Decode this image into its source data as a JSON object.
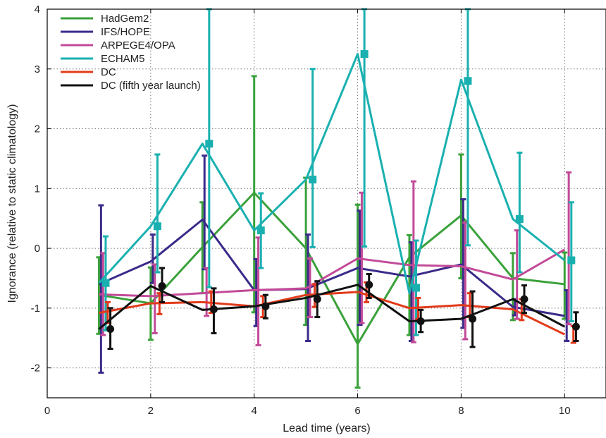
{
  "chart_data": {
    "type": "line",
    "xlabel": "Lead time (years)",
    "ylabel": "Ignorance (relative to static climatology)",
    "xlim": [
      0,
      10.8
    ],
    "ylim": [
      -2.5,
      4
    ],
    "xticks": [
      "0",
      "2",
      "4",
      "6",
      "8",
      "10"
    ],
    "yticks": [
      "-2",
      "-1",
      "0",
      "1",
      "2",
      "3",
      "4"
    ],
    "grid": true,
    "legend_position": "top-left",
    "x": [
      1,
      2,
      3,
      4,
      5,
      6,
      7,
      8,
      9,
      10
    ],
    "series": [
      {
        "name": "HadGem2",
        "color": "#3aa13a",
        "marker": "none",
        "offset": 0,
        "values": [
          -0.78,
          -0.92,
          0.02,
          0.93,
          0.0,
          -1.6,
          -0.15,
          0.55,
          -0.5,
          -0.6
        ],
        "err_low": [
          -1.43,
          -1.53,
          -0.75,
          -1.07,
          -1.28,
          -2.33,
          -1.45,
          -0.5,
          -1.2,
          -1.18
        ],
        "err_high": [
          -0.15,
          -0.32,
          0.77,
          2.88,
          1.18,
          0.73,
          0.22,
          1.57,
          -0.08,
          -0.07
        ]
      },
      {
        "name": "IFS/HOPE",
        "color": "#3b2a8a",
        "marker": "none",
        "offset": 0.04,
        "values": [
          -0.6,
          -0.22,
          0.48,
          -0.7,
          -0.68,
          -0.33,
          -0.47,
          -0.27,
          -0.98,
          -1.13
        ],
        "err_low": [
          -2.08,
          -0.58,
          -0.35,
          -1.3,
          -1.55,
          -1.28,
          -1.55,
          -1.33,
          -1.12,
          -1.55
        ],
        "err_high": [
          0.72,
          0.23,
          1.55,
          -0.18,
          0.23,
          0.63,
          0.1,
          0.82,
          -0.85,
          -0.7
        ]
      },
      {
        "name": "ARPEGE4/OPA",
        "color": "#c24a98",
        "marker": "none",
        "offset": 0.08,
        "values": [
          -0.77,
          -0.8,
          -0.75,
          -0.7,
          -0.67,
          -0.17,
          -0.28,
          -0.3,
          -0.52,
          -0.02
        ],
        "err_low": [
          -1.45,
          -1.42,
          -1.13,
          -1.62,
          -1.15,
          -1.25,
          -1.57,
          -1.52,
          -1.18,
          -1.27
        ],
        "err_high": [
          -0.08,
          -0.27,
          -0.33,
          0.18,
          -0.17,
          0.93,
          1.12,
          0.43,
          0.3,
          1.27
        ]
      },
      {
        "name": "ECHAM5",
        "color": "#1ab0b0",
        "marker": "square",
        "offset": 0.13,
        "values": [
          -0.58,
          0.37,
          1.75,
          0.3,
          1.15,
          3.25,
          -0.66,
          2.8,
          0.49,
          -0.2
        ],
        "line_values": [
          -0.58,
          0.37,
          1.75,
          0.3,
          1.15,
          3.25,
          -0.75,
          2.82,
          0.49,
          -0.2
        ],
        "err_low": [
          -1.37,
          -0.4,
          -0.65,
          -0.33,
          0.02,
          0.03,
          -1.45,
          0.05,
          -0.4,
          -1.22
        ],
        "err_high": [
          0.2,
          1.57,
          4.0,
          0.92,
          3.0,
          4.0,
          0.13,
          4.0,
          1.6,
          0.77
        ]
      },
      {
        "name": "DC",
        "color": "#e23a1a",
        "marker": "none",
        "offset": 0.17,
        "values": [
          -1.08,
          -0.92,
          -0.9,
          -0.97,
          -0.78,
          -0.73,
          -1.0,
          -0.95,
          -1.02,
          -1.44
        ],
        "err_low": [
          -1.25,
          -1.1,
          -1.08,
          -1.15,
          -0.98,
          -0.9,
          -1.18,
          -1.15,
          -1.2,
          -1.58
        ],
        "err_high": [
          -0.9,
          -0.75,
          -0.72,
          -0.8,
          -0.6,
          -0.57,
          -0.83,
          -0.75,
          -0.85,
          -1.3
        ]
      },
      {
        "name": "DC (fifth year launch)",
        "color": "#111111",
        "marker": "circle",
        "offset": 0.22,
        "values": [
          -1.35,
          -0.63,
          -1.02,
          -0.97,
          -0.85,
          -0.61,
          -1.22,
          -1.18,
          -0.85,
          -1.31
        ],
        "line_values": [
          -1.35,
          -0.63,
          -1.03,
          -0.97,
          -0.83,
          -0.61,
          -1.22,
          -1.18,
          -0.85,
          -1.31
        ],
        "err_low": [
          -1.68,
          -0.9,
          -1.42,
          -1.17,
          -1.15,
          -0.83,
          -1.4,
          -1.65,
          -1.08,
          -1.55
        ],
        "err_high": [
          -1.0,
          -0.33,
          -0.67,
          -0.78,
          -0.55,
          -0.43,
          -1.03,
          -0.72,
          -0.62,
          -1.07
        ]
      }
    ]
  }
}
